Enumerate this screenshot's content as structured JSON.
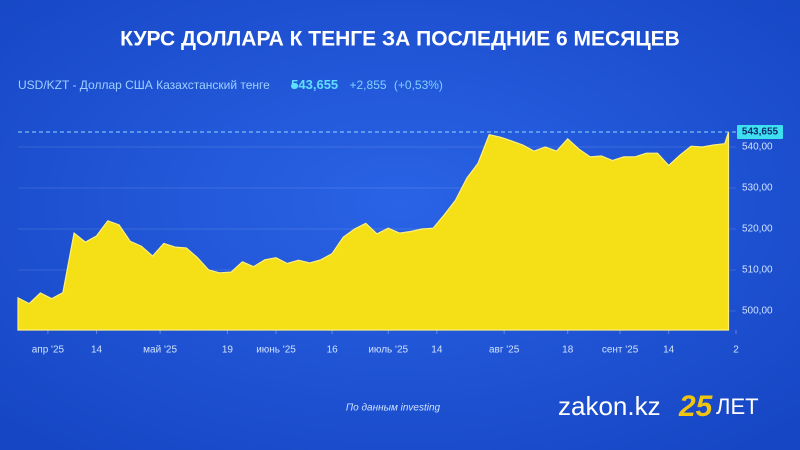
{
  "chart_data": {
    "type": "area",
    "title": "КУРС ДОЛЛАРА К ТЕНГЕ ЗА ПОСЛЕДНИЕ 6 МЕСЯЦЕВ",
    "pair_name": "USD/KZT - Доллар США Казахстанский тенге",
    "current": {
      "value": 543.655,
      "label": "543,655"
    },
    "change": "+2,855",
    "change_pct": "(+0,53%)",
    "source": "По данным investing",
    "brand": "zakon.kz",
    "brand_number": "25",
    "brand_suffix": "ЛЕТ",
    "color": "#f5df16",
    "grid": true,
    "x": [
      "2025-03-24",
      "2025-03-27",
      "2025-03-30",
      "2025-04-02",
      "2025-04-05",
      "2025-04-08",
      "2025-04-11",
      "2025-04-14",
      "2025-04-17",
      "2025-04-20",
      "2025-04-23",
      "2025-04-26",
      "2025-04-29",
      "2025-05-02",
      "2025-05-05",
      "2025-05-08",
      "2025-05-11",
      "2025-05-14",
      "2025-05-17",
      "2025-05-20",
      "2025-05-23",
      "2025-05-26",
      "2025-05-29",
      "2025-06-01",
      "2025-06-04",
      "2025-06-07",
      "2025-06-10",
      "2025-06-13",
      "2025-06-16",
      "2025-06-19",
      "2025-06-22",
      "2025-06-25",
      "2025-06-28",
      "2025-07-01",
      "2025-07-04",
      "2025-07-07",
      "2025-07-10",
      "2025-07-13",
      "2025-07-16",
      "2025-07-19",
      "2025-07-22",
      "2025-07-25",
      "2025-07-28",
      "2025-07-31",
      "2025-08-03",
      "2025-08-06",
      "2025-08-09",
      "2025-08-12",
      "2025-08-15",
      "2025-08-18",
      "2025-08-21",
      "2025-08-24",
      "2025-08-27",
      "2025-08-30",
      "2025-09-02",
      "2025-09-05",
      "2025-09-08",
      "2025-09-11",
      "2025-09-14",
      "2025-09-17",
      "2025-09-20",
      "2025-09-23",
      "2025-09-26",
      "2025-09-29",
      "2025-09-30"
    ],
    "values": [
      503.2,
      501.8,
      504.4,
      503,
      504.5,
      519,
      516.8,
      518.3,
      522,
      521,
      517,
      515.8,
      513.4,
      516.5,
      515.6,
      515.4,
      513,
      510,
      509.3,
      509.5,
      512,
      510.8,
      512.5,
      513,
      511.6,
      512.4,
      511.7,
      512.5,
      514,
      518,
      520,
      521.4,
      518.8,
      520.2,
      519,
      519.4,
      520,
      520.2,
      523.5,
      527,
      532.4,
      536,
      543,
      542.4,
      541.5,
      540.5,
      539,
      540,
      539,
      542,
      539.5,
      537.6,
      537.8,
      536.7,
      537.6,
      537.6,
      538.5,
      538.5,
      535.5,
      538,
      540.2,
      540,
      540.5,
      540.8,
      543.655
    ],
    "xlim": [
      "2025-03-24",
      "2025-10-02"
    ],
    "xticks": [
      {
        "value": "2025-04-01",
        "label": "апр '25"
      },
      {
        "value": "2025-04-14",
        "label": "14"
      },
      {
        "value": "2025-05-01",
        "label": "май '25"
      },
      {
        "value": "2025-05-19",
        "label": "19"
      },
      {
        "value": "2025-06-01",
        "label": "июнь '25"
      },
      {
        "value": "2025-06-16",
        "label": "16"
      },
      {
        "value": "2025-07-01",
        "label": "июль '25"
      },
      {
        "value": "2025-07-14",
        "label": "14"
      },
      {
        "value": "2025-08-01",
        "label": "авг '25"
      },
      {
        "value": "2025-08-18",
        "label": "18"
      },
      {
        "value": "2025-09-01",
        "label": "сент '25"
      },
      {
        "value": "2025-09-14",
        "label": "14"
      },
      {
        "value": "2025-10-02",
        "label": "2"
      }
    ],
    "ylim": [
      495.37,
      546.1
    ],
    "yticks": [
      {
        "value": 500,
        "label": "500,00"
      },
      {
        "value": 510,
        "label": "510,00"
      },
      {
        "value": 520,
        "label": "520,00"
      },
      {
        "value": 530,
        "label": "530,00"
      },
      {
        "value": 540,
        "label": "540,00"
      }
    ]
  }
}
